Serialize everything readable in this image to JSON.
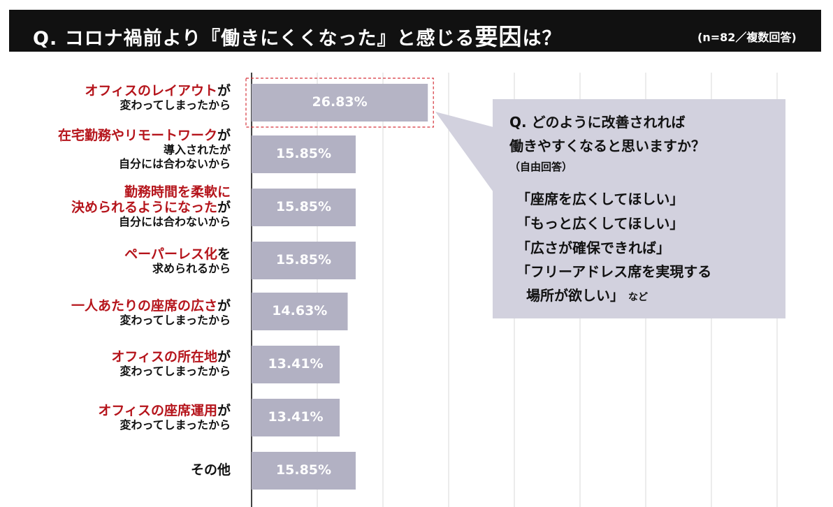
{
  "title": {
    "main_prefix": "Q. コロナ禍前より『働きにくくなった』と感じる",
    "main_emphasis": "要因",
    "main_suffix": "は？",
    "note": "(n=82／複数回答)"
  },
  "colors": {
    "bar": "#b2b1c3",
    "highlight_bar": "#b5b4c5",
    "grid": "#d9d9d9",
    "accent_red": "#b5141b",
    "callout_bg": "#d2d1de",
    "title_bg": "#111111"
  },
  "labels": [
    {
      "red": "オフィスのレイアウト",
      "black": "が",
      "line2": "変わってしまったから"
    },
    {
      "red": "在宅勤務やリモートワーク",
      "black": "が",
      "line2": "導入されたが",
      "line3": "自分には合わないから"
    },
    {
      "red": "勤務時間を柔軟に",
      "black": "",
      "line1b_red": "決められるようになった",
      "line1b_black": "が",
      "line2": "自分には合わないから"
    },
    {
      "red": "ペーパーレス化",
      "black": "を",
      "line2": "求められるから"
    },
    {
      "red": "一人あたりの座席の広さ",
      "black": "が",
      "line2": "変わってしまったから"
    },
    {
      "red": "オフィスの所在地",
      "black": "が",
      "line2": "変わってしまったから"
    },
    {
      "red": "オフィスの座席運用",
      "black": "が",
      "line2": "変わってしまったから"
    },
    {
      "red": "",
      "black": "その他"
    }
  ],
  "chart_data": {
    "type": "bar",
    "orientation": "horizontal",
    "categories": [
      "オフィスのレイアウトが変わってしまったから",
      "在宅勤務やリモートワークが導入されたが自分には合わないから",
      "勤務時間を柔軟に決められるようになったが自分には合わないから",
      "ペーパーレス化を求められるから",
      "一人あたりの座席の広さが変わってしまったから",
      "オフィスの所在地が変わってしまったから",
      "オフィスの座席運用が変わってしまったから",
      "その他"
    ],
    "values": [
      26.83,
      15.85,
      15.85,
      15.85,
      14.63,
      13.41,
      13.41,
      15.85
    ],
    "value_labels": [
      "26.83%",
      "15.85%",
      "15.85%",
      "15.85%",
      "14.63%",
      "13.41%",
      "13.41%",
      "15.85%"
    ],
    "unit": "%",
    "xlim": [
      0,
      80
    ],
    "grid": true,
    "highlighted_index": 0
  },
  "callout": {
    "question_line1": "Q. どのように改善されれば",
    "question_line2": "働きやすくなると思いますか？",
    "question_note": "（自由回答）",
    "answers": [
      "「座席を広くしてほしい」",
      "「もっと広くしてほしい」",
      "「広さが確保できれば」",
      "「フリーアドレス席を実現する"
    ],
    "answer_last": "場所が欲しい」",
    "answer_suffix": "など"
  }
}
